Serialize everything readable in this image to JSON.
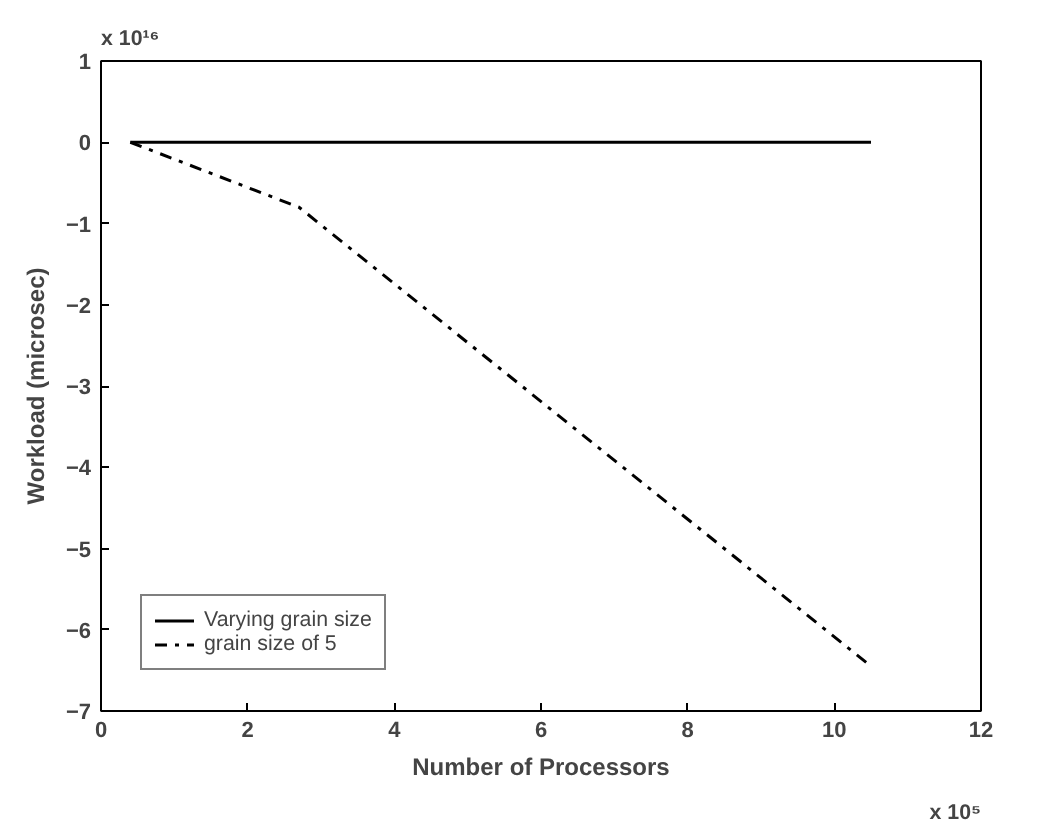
{
  "chart_data": {
    "type": "line",
    "xlabel": "Number of Processors",
    "ylabel": "Workload (microsec)",
    "annotations": [
      "x 10¹⁶",
      "x 10⁵"
    ],
    "xlim": [
      0,
      12
    ],
    "xticks": [
      0,
      2,
      4,
      6,
      8,
      10,
      12
    ],
    "ylim": [
      -7,
      1
    ],
    "yticks": [
      -7,
      -6,
      -5,
      -4,
      -3,
      -2,
      -1,
      0,
      1
    ],
    "series": [
      {
        "name": "Varying grain size",
        "color": "#000000",
        "line_style": "solid",
        "x": [
          0.4,
          10.5
        ],
        "values": [
          0,
          0
        ]
      },
      {
        "name": "grain size of 5",
        "color": "#000000",
        "line_style": "dashdot",
        "x": [
          0.4,
          2.7,
          10.5
        ],
        "values": [
          0,
          -0.8,
          -6.45
        ]
      }
    ],
    "legend": "bottom left",
    "grid": false
  }
}
